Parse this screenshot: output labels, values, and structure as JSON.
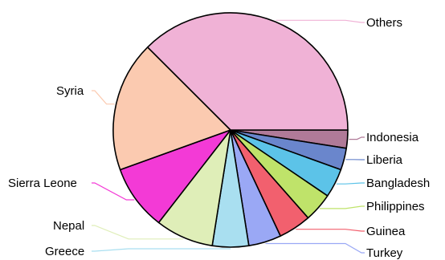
{
  "chart_data": {
    "type": "pie",
    "title": "",
    "slices": [
      {
        "label": "Indonesia",
        "value": 2.5,
        "color": "#b07a98",
        "leader": "#b07a98"
      },
      {
        "label": "Liberia",
        "value": 3.0,
        "color": "#6a86cc",
        "leader": "#6a86cc"
      },
      {
        "label": "Bangladesh",
        "value": 4.0,
        "color": "#5cc3e8",
        "leader": "#5cc3e8"
      },
      {
        "label": "Philippines",
        "value": 4.0,
        "color": "#bfe36a",
        "leader": "#bfe36a"
      },
      {
        "label": "Guinea",
        "value": 4.5,
        "color": "#f2606e",
        "leader": "#f2606e"
      },
      {
        "label": "Turkey",
        "value": 4.5,
        "color": "#9aa8f5",
        "leader": "#9aa8f5"
      },
      {
        "label": "Greece",
        "value": 5.0,
        "color": "#a9dff0",
        "leader": "#a9dff0"
      },
      {
        "label": "Nepal",
        "value": 8.0,
        "color": "#dfeeb8",
        "leader": "#dfeeb8"
      },
      {
        "label": "Sierra Leone",
        "value": 9.0,
        "color": "#f33ad6",
        "leader": "#f33ad6"
      },
      {
        "label": "Syria",
        "value": 18.0,
        "color": "#fbcab0",
        "leader": "#fbcab0"
      },
      {
        "label": "Others",
        "value": 37.5,
        "color": "#f0b2d6",
        "leader": "#f0b2d6"
      }
    ],
    "start_angle_deg": 0,
    "direction": "clockwise",
    "legend": "none"
  }
}
